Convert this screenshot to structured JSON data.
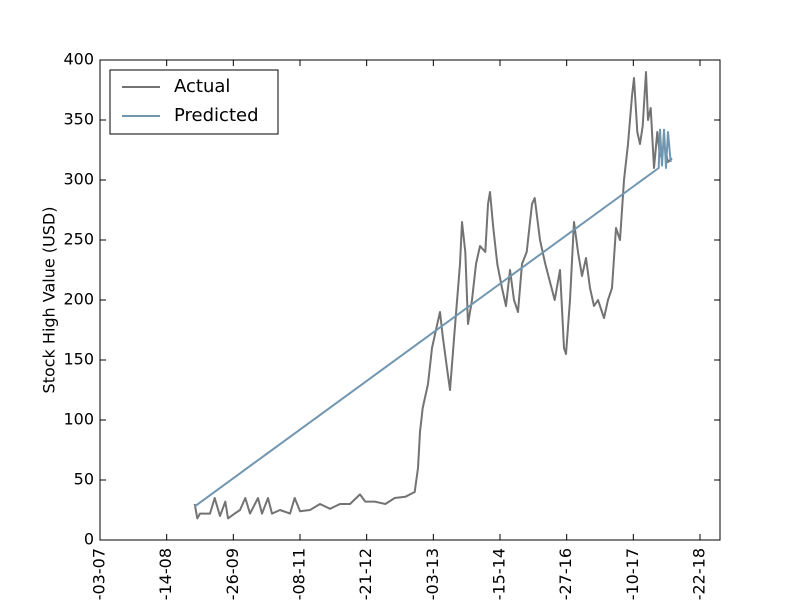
{
  "chart_data": {
    "type": "line",
    "y_label": "Stock High Value (USD)",
    "xlim": [
      0,
      930
    ],
    "xticks": [
      {
        "value": 0,
        "label": "-03-07"
      },
      {
        "value": 100,
        "label": "-14-08"
      },
      {
        "value": 200,
        "label": "-26-09"
      },
      {
        "value": 300,
        "label": "-08-11"
      },
      {
        "value": 400,
        "label": "-21-12"
      },
      {
        "value": 500,
        "label": "-03-13"
      },
      {
        "value": 600,
        "label": "-15-14"
      },
      {
        "value": 700,
        "label": "-27-16"
      },
      {
        "value": 800,
        "label": "-10-17"
      },
      {
        "value": 900,
        "label": "-22-18"
      }
    ],
    "ylim": [
      0,
      400
    ],
    "yticks": [
      0,
      50,
      100,
      150,
      200,
      250,
      300,
      350,
      400
    ],
    "legend": "upper left",
    "series": [
      {
        "name": "Actual",
        "color": "#737373",
        "x": [
          142,
          146,
          150,
          165,
          172,
          180,
          188,
          192,
          202,
          210,
          218,
          225,
          237,
          243,
          252,
          258,
          270,
          285,
          292,
          300,
          315,
          330,
          345,
          360,
          375,
          390,
          398,
          412,
          428,
          442,
          458,
          472,
          477,
          480,
          484,
          492,
          498,
          506,
          510,
          514,
          520,
          525,
          532,
          540,
          543,
          548,
          552,
          558,
          564,
          570,
          578,
          582,
          585,
          590,
          596,
          603,
          609,
          615,
          621,
          627,
          633,
          640,
          648,
          652,
          660,
          668,
          675,
          682,
          690,
          696,
          699,
          705,
          711,
          717,
          723,
          729,
          735,
          741,
          747,
          756,
          762,
          768,
          774,
          780,
          786,
          792,
          798,
          801,
          806,
          810,
          814,
          819,
          822,
          826,
          831,
          836,
          840,
          846,
          852,
          858
        ],
        "values": [
          30,
          18,
          22,
          22,
          35,
          20,
          32,
          18,
          22,
          25,
          35,
          22,
          35,
          22,
          35,
          22,
          25,
          22,
          35,
          24,
          25,
          30,
          26,
          30,
          30,
          38,
          32,
          32,
          30,
          35,
          36,
          40,
          60,
          90,
          110,
          130,
          160,
          180,
          190,
          170,
          145,
          125,
          175,
          230,
          265,
          240,
          180,
          200,
          230,
          245,
          240,
          280,
          290,
          260,
          230,
          210,
          195,
          225,
          200,
          190,
          230,
          240,
          280,
          285,
          250,
          230,
          215,
          200,
          225,
          160,
          155,
          200,
          265,
          240,
          220,
          235,
          210,
          195,
          200,
          185,
          200,
          210,
          260,
          250,
          300,
          330,
          370,
          385,
          340,
          330,
          345,
          390,
          350,
          360,
          310,
          340,
          320,
          330,
          315,
          318
        ]
      },
      {
        "name": "Predicted",
        "color": "#7196b0",
        "x": [
          142,
          838,
          840,
          843,
          846,
          849,
          852,
          856
        ],
        "values": [
          28,
          310,
          342,
          312,
          342,
          310,
          340,
          315
        ]
      }
    ]
  }
}
